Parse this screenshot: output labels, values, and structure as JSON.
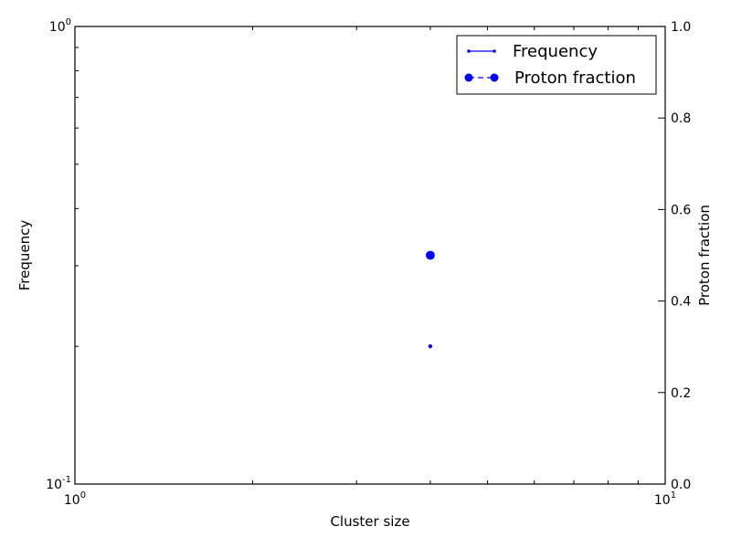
{
  "chart_data": {
    "type": "scatter",
    "xlabel": "Cluster size",
    "ylabel_left": "Frequency",
    "ylabel_right": "Proton fraction",
    "x_scale": "log",
    "x_range": [
      1,
      10
    ],
    "y_left_scale": "log",
    "y_left_range": [
      0.1,
      1
    ],
    "y_right_scale": "linear",
    "y_right_range": [
      0.0,
      1.0
    ],
    "x_ticks": [
      {
        "value": 1,
        "base": "10",
        "exp": "0"
      },
      {
        "value": 10,
        "base": "10",
        "exp": "1"
      }
    ],
    "y_left_ticks": [
      {
        "value": 0.1,
        "base": "10",
        "exp": "-1"
      },
      {
        "value": 1,
        "base": "10",
        "exp": "0"
      }
    ],
    "y_right_ticks": [
      {
        "value": 0.0,
        "label": "0.0"
      },
      {
        "value": 0.2,
        "label": "0.2"
      },
      {
        "value": 0.4,
        "label": "0.4"
      },
      {
        "value": 0.6,
        "label": "0.6"
      },
      {
        "value": 0.8,
        "label": "0.8"
      },
      {
        "value": 1.0,
        "label": "1.0"
      }
    ],
    "series": [
      {
        "name": "Frequency",
        "axis": "left",
        "x": [
          4
        ],
        "y": [
          0.2
        ],
        "color": "#0000ff",
        "marker": "small-dot",
        "line": "solid"
      },
      {
        "name": "Proton fraction",
        "axis": "right",
        "x": [
          4
        ],
        "y": [
          0.5
        ],
        "color": "#0000ff",
        "marker": "circle",
        "line": "dashed"
      }
    ],
    "legend_position": "top-right",
    "grid": false
  }
}
